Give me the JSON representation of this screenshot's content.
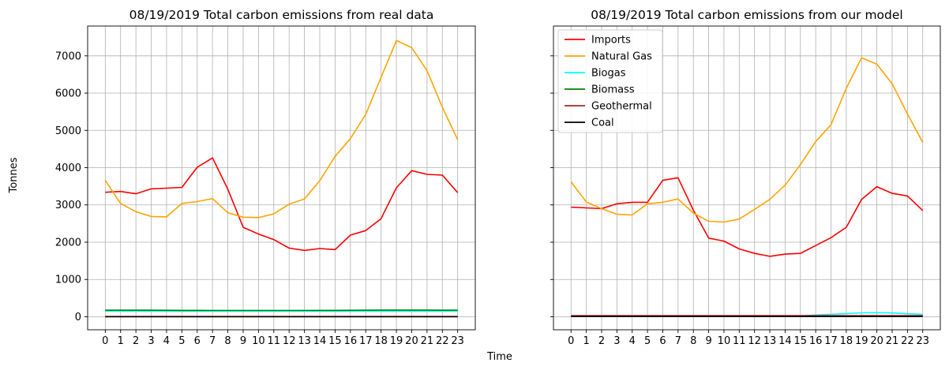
{
  "figure": {
    "ylabel": "Tonnes",
    "xlabel": "Time"
  },
  "chart_data": [
    {
      "type": "line",
      "title": "08/19/2019 Total carbon emissions from real data",
      "x": [
        0,
        1,
        2,
        3,
        4,
        5,
        6,
        7,
        8,
        9,
        10,
        11,
        12,
        13,
        14,
        15,
        16,
        17,
        18,
        19,
        20,
        21,
        22,
        23
      ],
      "xticks": [
        "0",
        "1",
        "2",
        "3",
        "4",
        "5",
        "6",
        "7",
        "8",
        "9",
        "10",
        "11",
        "12",
        "13",
        "14",
        "15",
        "16",
        "17",
        "18",
        "19",
        "20",
        "21",
        "22",
        "23"
      ],
      "xlim": [
        -1.15,
        24.15
      ],
      "ylim": [
        -350,
        7800
      ],
      "yticks": [
        0,
        1000,
        2000,
        3000,
        4000,
        5000,
        6000,
        7000
      ],
      "grid": true,
      "legend": "none",
      "series": [
        {
          "color": "#ff0000",
          "values": [
            3340,
            3360,
            3300,
            3430,
            3450,
            3470,
            4010,
            4260,
            3420,
            2400,
            2220,
            2070,
            1840,
            1780,
            1830,
            1800,
            2190,
            2310,
            2630,
            3460,
            3920,
            3820,
            3800,
            3330
          ]
        },
        {
          "color": "#ffa500",
          "values": [
            3660,
            3040,
            2820,
            2690,
            2680,
            3040,
            3090,
            3170,
            2790,
            2670,
            2660,
            2760,
            3020,
            3160,
            3650,
            4300,
            4780,
            5430,
            6420,
            7410,
            7220,
            6600,
            5620,
            4750
          ]
        },
        {
          "color": "#00ffff",
          "values": [
            150,
            150,
            150,
            150,
            150,
            150,
            150,
            150,
            150,
            150,
            150,
            150,
            150,
            150,
            150,
            150,
            150,
            150,
            150,
            150,
            150,
            150,
            150,
            150
          ]
        },
        {
          "color": "#008000",
          "values": [
            175,
            175,
            175,
            175,
            172,
            170,
            170,
            168,
            168,
            168,
            168,
            168,
            168,
            168,
            170,
            170,
            172,
            175,
            177,
            177,
            177,
            177,
            175,
            175
          ]
        },
        {
          "color": "#a52a2a",
          "values": [
            5,
            5,
            5,
            5,
            5,
            5,
            5,
            5,
            5,
            5,
            5,
            5,
            5,
            5,
            5,
            5,
            5,
            5,
            5,
            5,
            5,
            5,
            5,
            5
          ]
        },
        {
          "color": "#000000",
          "values": [
            0,
            0,
            0,
            0,
            0,
            0,
            0,
            0,
            0,
            0,
            0,
            0,
            0,
            0,
            0,
            0,
            0,
            0,
            0,
            0,
            0,
            0,
            0,
            0
          ]
        }
      ]
    },
    {
      "type": "line",
      "title": "08/19/2019 Total carbon emissions from our model",
      "x": [
        0,
        1,
        2,
        3,
        4,
        5,
        6,
        7,
        8,
        9,
        10,
        11,
        12,
        13,
        14,
        15,
        16,
        17,
        18,
        19,
        20,
        21,
        22,
        23
      ],
      "xticks": [
        "0",
        "1",
        "2",
        "3",
        "4",
        "5",
        "6",
        "7",
        "8",
        "9",
        "10",
        "11",
        "12",
        "13",
        "14",
        "15",
        "16",
        "17",
        "18",
        "19",
        "20",
        "21",
        "22",
        "23"
      ],
      "xlim": [
        -1.15,
        24.15
      ],
      "ylim": [
        -350,
        7800
      ],
      "grid": true,
      "legend": "top-left",
      "series": [
        {
          "name": "Imports",
          "color": "#ff0000",
          "values": [
            2940,
            2920,
            2900,
            3030,
            3070,
            3070,
            3660,
            3730,
            2860,
            2110,
            2030,
            1820,
            1700,
            1620,
            1680,
            1700,
            1910,
            2120,
            2400,
            3150,
            3490,
            3310,
            3240,
            2850
          ]
        },
        {
          "name": "Natural Gas",
          "color": "#ffa500",
          "values": [
            3620,
            3080,
            2900,
            2750,
            2730,
            3030,
            3070,
            3160,
            2780,
            2560,
            2540,
            2620,
            2880,
            3150,
            3530,
            4080,
            4700,
            5150,
            6130,
            6950,
            6780,
            6250,
            5440,
            4680
          ]
        },
        {
          "name": "Biogas",
          "color": "#00ffff",
          "values": [
            10,
            10,
            10,
            10,
            10,
            10,
            10,
            10,
            10,
            10,
            10,
            10,
            10,
            10,
            15,
            25,
            45,
            65,
            85,
            105,
            110,
            100,
            80,
            60
          ]
        },
        {
          "name": "Biomass",
          "color": "#008000",
          "values": [
            20,
            20,
            20,
            20,
            20,
            20,
            20,
            20,
            20,
            20,
            20,
            20,
            20,
            20,
            20,
            20,
            20,
            20,
            20,
            20,
            20,
            20,
            20,
            20
          ]
        },
        {
          "name": "Geothermal",
          "color": "#a52a2a",
          "values": [
            30,
            30,
            30,
            30,
            30,
            30,
            30,
            30,
            30,
            30,
            30,
            30,
            30,
            30,
            30,
            30,
            30,
            30,
            30,
            30,
            30,
            30,
            30,
            30
          ]
        },
        {
          "name": "Coal",
          "color": "#000000",
          "values": [
            5,
            5,
            5,
            5,
            5,
            5,
            5,
            5,
            5,
            5,
            5,
            5,
            5,
            5,
            5,
            5,
            5,
            5,
            5,
            5,
            5,
            5,
            5,
            5
          ]
        }
      ]
    }
  ]
}
